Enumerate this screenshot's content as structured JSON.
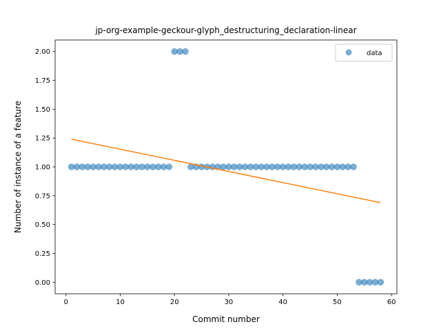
{
  "chart_data": {
    "type": "scatter",
    "title": "jp-org-example-geckour-glyph_destructuring_declaration-linear",
    "xlabel": "Commit number",
    "ylabel": "Number of instance of a feature",
    "xlim": [
      -2,
      61
    ],
    "ylim": [
      -0.1,
      2.1
    ],
    "xticks": [
      0,
      10,
      20,
      30,
      40,
      50,
      60
    ],
    "yticks": [
      0.0,
      0.25,
      0.5,
      0.75,
      1.0,
      1.25,
      1.5,
      1.75,
      2.0
    ],
    "xtick_labels": [
      "0",
      "10",
      "20",
      "30",
      "40",
      "50",
      "60"
    ],
    "ytick_labels": [
      "0.00",
      "0.25",
      "0.50",
      "0.75",
      "1.00",
      "1.25",
      "1.50",
      "1.75",
      "2.00"
    ],
    "grid": false,
    "legend_position": "top-right",
    "series": [
      {
        "name": "data",
        "kind": "scatter",
        "color": "#1f77b4",
        "x": [
          1,
          2,
          3,
          4,
          5,
          6,
          7,
          8,
          9,
          10,
          11,
          12,
          13,
          14,
          15,
          16,
          17,
          18,
          19,
          20,
          21,
          22,
          23,
          24,
          25,
          26,
          27,
          28,
          29,
          30,
          31,
          32,
          33,
          34,
          35,
          36,
          37,
          38,
          39,
          40,
          41,
          42,
          43,
          44,
          45,
          46,
          47,
          48,
          49,
          50,
          51,
          52,
          53,
          54,
          55,
          56,
          57,
          58
        ],
        "y": [
          1,
          1,
          1,
          1,
          1,
          1,
          1,
          1,
          1,
          1,
          1,
          1,
          1,
          1,
          1,
          1,
          1,
          1,
          1,
          2,
          2,
          2,
          1,
          1,
          1,
          1,
          1,
          1,
          1,
          1,
          1,
          1,
          1,
          1,
          1,
          1,
          1,
          1,
          1,
          1,
          1,
          1,
          1,
          1,
          1,
          1,
          1,
          1,
          1,
          1,
          1,
          1,
          1,
          0,
          0,
          0,
          0,
          0
        ]
      },
      {
        "kind": "line",
        "color": "#ff7f0e",
        "x": [
          1,
          58
        ],
        "y": [
          1.24,
          0.69
        ]
      }
    ]
  }
}
